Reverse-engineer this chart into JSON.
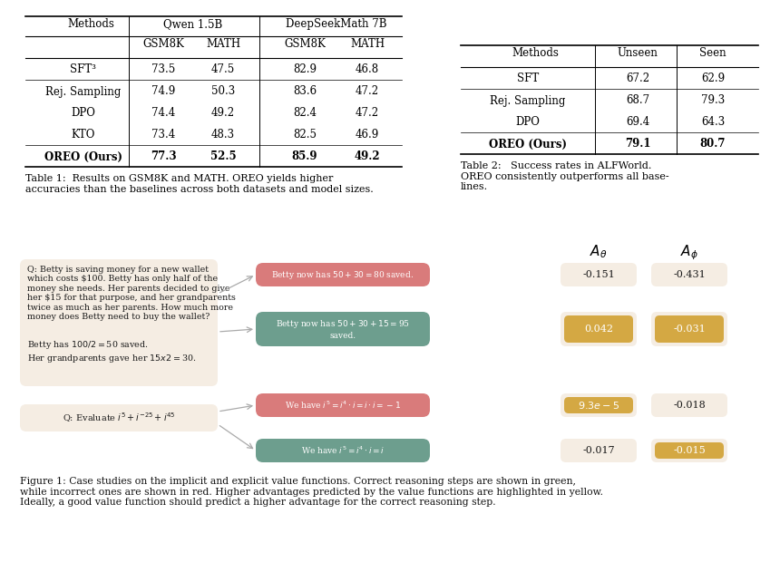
{
  "bg_color": "#ffffff",
  "table1": {
    "col_headers": [
      "Methods",
      "GSM8K",
      "MATH",
      "GSM8K",
      "MATH"
    ],
    "group_headers": [
      "Qwen 1.5B",
      "DeepSeekMath 7B"
    ],
    "rows": [
      [
        "SFT³",
        "73.5",
        "47.5",
        "82.9",
        "46.8"
      ],
      [
        "Rej. Sampling",
        "74.9",
        "50.3",
        "83.6",
        "47.2"
      ],
      [
        "DPO",
        "74.4",
        "49.2",
        "82.4",
        "47.2"
      ],
      [
        "KTO",
        "73.4",
        "48.3",
        "82.5",
        "46.9"
      ],
      [
        "OREO (Ours)",
        "77.3",
        "52.5",
        "85.9",
        "49.2"
      ]
    ],
    "bold_rows": [
      4
    ],
    "caption": "Table 1:  Results on GSM8K and MATH. OREO yields higher\naccuracies than the baselines across both datasets and model sizes."
  },
  "table2": {
    "col_headers": [
      "Methods",
      "Unseen",
      "Seen"
    ],
    "rows": [
      [
        "SFT",
        "67.2",
        "62.9"
      ],
      [
        "Rej. Sampling",
        "68.7",
        "79.3"
      ],
      [
        "DPO",
        "69.4",
        "64.3"
      ],
      [
        "OREO (Ours)",
        "79.1",
        "80.7"
      ]
    ],
    "bold_rows": [
      3
    ],
    "caption": "Table 2:   Success rates in ALFWorld.\nOREO consistently outperforms all base-\nlines."
  },
  "figure1": {
    "caption": "Figure 1: Case studies on the implicit and explicit value functions. Correct reasoning steps are shown in green,\nwhile incorrect ones are shown in red. Higher advantages predicted by the value functions are highlighted in yellow.\nIdeally, a good value function should predict a higher advantage for the correct reasoning step.",
    "q1_text": "Q: Betty is saving money for a new wallet\nwhich costs $100. Betty has only half of the\nmoney she needs. Her parents decided to give\nher $15 for that purpose, and her grandparents\ntwice as much as her parents. How much more\nmoney does Betty need to buy the wallet?",
    "q1_answer": "Betty has $100/2 = $50 saved.\nHer grandparents gave her $15 x 2 = $30.",
    "q_box_color": "#f5ede3",
    "step_red_color": "#d97b7b",
    "step_green_color": "#6d9e8e",
    "highlight_color": "#d4a843",
    "value_box_color": "#f5ede3",
    "steps": [
      {
        "text": "Betty now has $50 + 30 = $80 saved.",
        "color": "#d97b7b",
        "A_theta": "-0.151",
        "A_phi": "-0.431",
        "A_theta_hi": false,
        "A_phi_hi": false
      },
      {
        "text": "Betty now has $50 + 30 + 15 = $95\nsaved.",
        "color": "#6d9e8e",
        "A_theta": "0.042",
        "A_phi": "-0.031",
        "A_theta_hi": true,
        "A_phi_hi": true
      },
      {
        "text": "We have i^5=i^4*i=i*i=-1",
        "color": "#d97b7b",
        "A_theta": "9.3e-5",
        "A_phi": "-0.018",
        "A_theta_hi": true,
        "A_phi_hi": false
      },
      {
        "text": "We have i^5=i^4*i=i",
        "color": "#6d9e8e",
        "A_theta": "-0.017",
        "A_phi": "-0.015",
        "A_theta_hi": false,
        "A_phi_hi": true
      }
    ]
  }
}
